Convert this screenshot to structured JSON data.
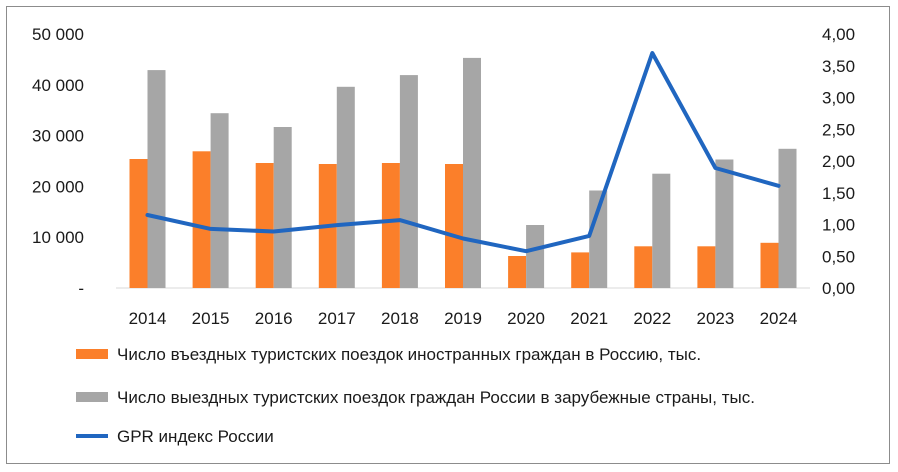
{
  "chart_data": {
    "type": "bar+line",
    "categories": [
      "2014",
      "2015",
      "2016",
      "2017",
      "2018",
      "2019",
      "2020",
      "2021",
      "2022",
      "2023",
      "2024"
    ],
    "series": [
      {
        "name": "Число въездных туристских поездок иностранных граждан в Россию, тыс.",
        "type": "bar",
        "axis": "left",
        "color": "#fb7f2a",
        "values": [
          25400,
          26900,
          24600,
          24400,
          24600,
          24400,
          6300,
          7000,
          8200,
          8200,
          8900
        ]
      },
      {
        "name": "Число выездных туристских поездок граждан России в зарубежные страны, тыс.",
        "type": "bar",
        "axis": "left",
        "color": "#a6a6a6",
        "values": [
          42900,
          34400,
          31700,
          39600,
          41900,
          45300,
          12400,
          19200,
          22500,
          25300,
          27400
        ]
      },
      {
        "name": "GPR индекс России",
        "type": "line",
        "axis": "right",
        "color": "#2066c0",
        "values": [
          1.15,
          0.93,
          0.89,
          0.99,
          1.07,
          0.78,
          0.58,
          0.82,
          3.7,
          1.89,
          1.61
        ]
      }
    ],
    "y_left": {
      "min": 0,
      "max": 50000,
      "ticks": [
        "-",
        "10 000",
        "20 000",
        "30 000",
        "40 000",
        "50 000"
      ]
    },
    "y_right": {
      "min": 0,
      "max": 4,
      "ticks": [
        "0,00",
        "0,50",
        "1,00",
        "1,50",
        "2,00",
        "2,50",
        "3,00",
        "3,50",
        "4,00"
      ]
    },
    "grid": false,
    "legend_position": "bottom"
  }
}
